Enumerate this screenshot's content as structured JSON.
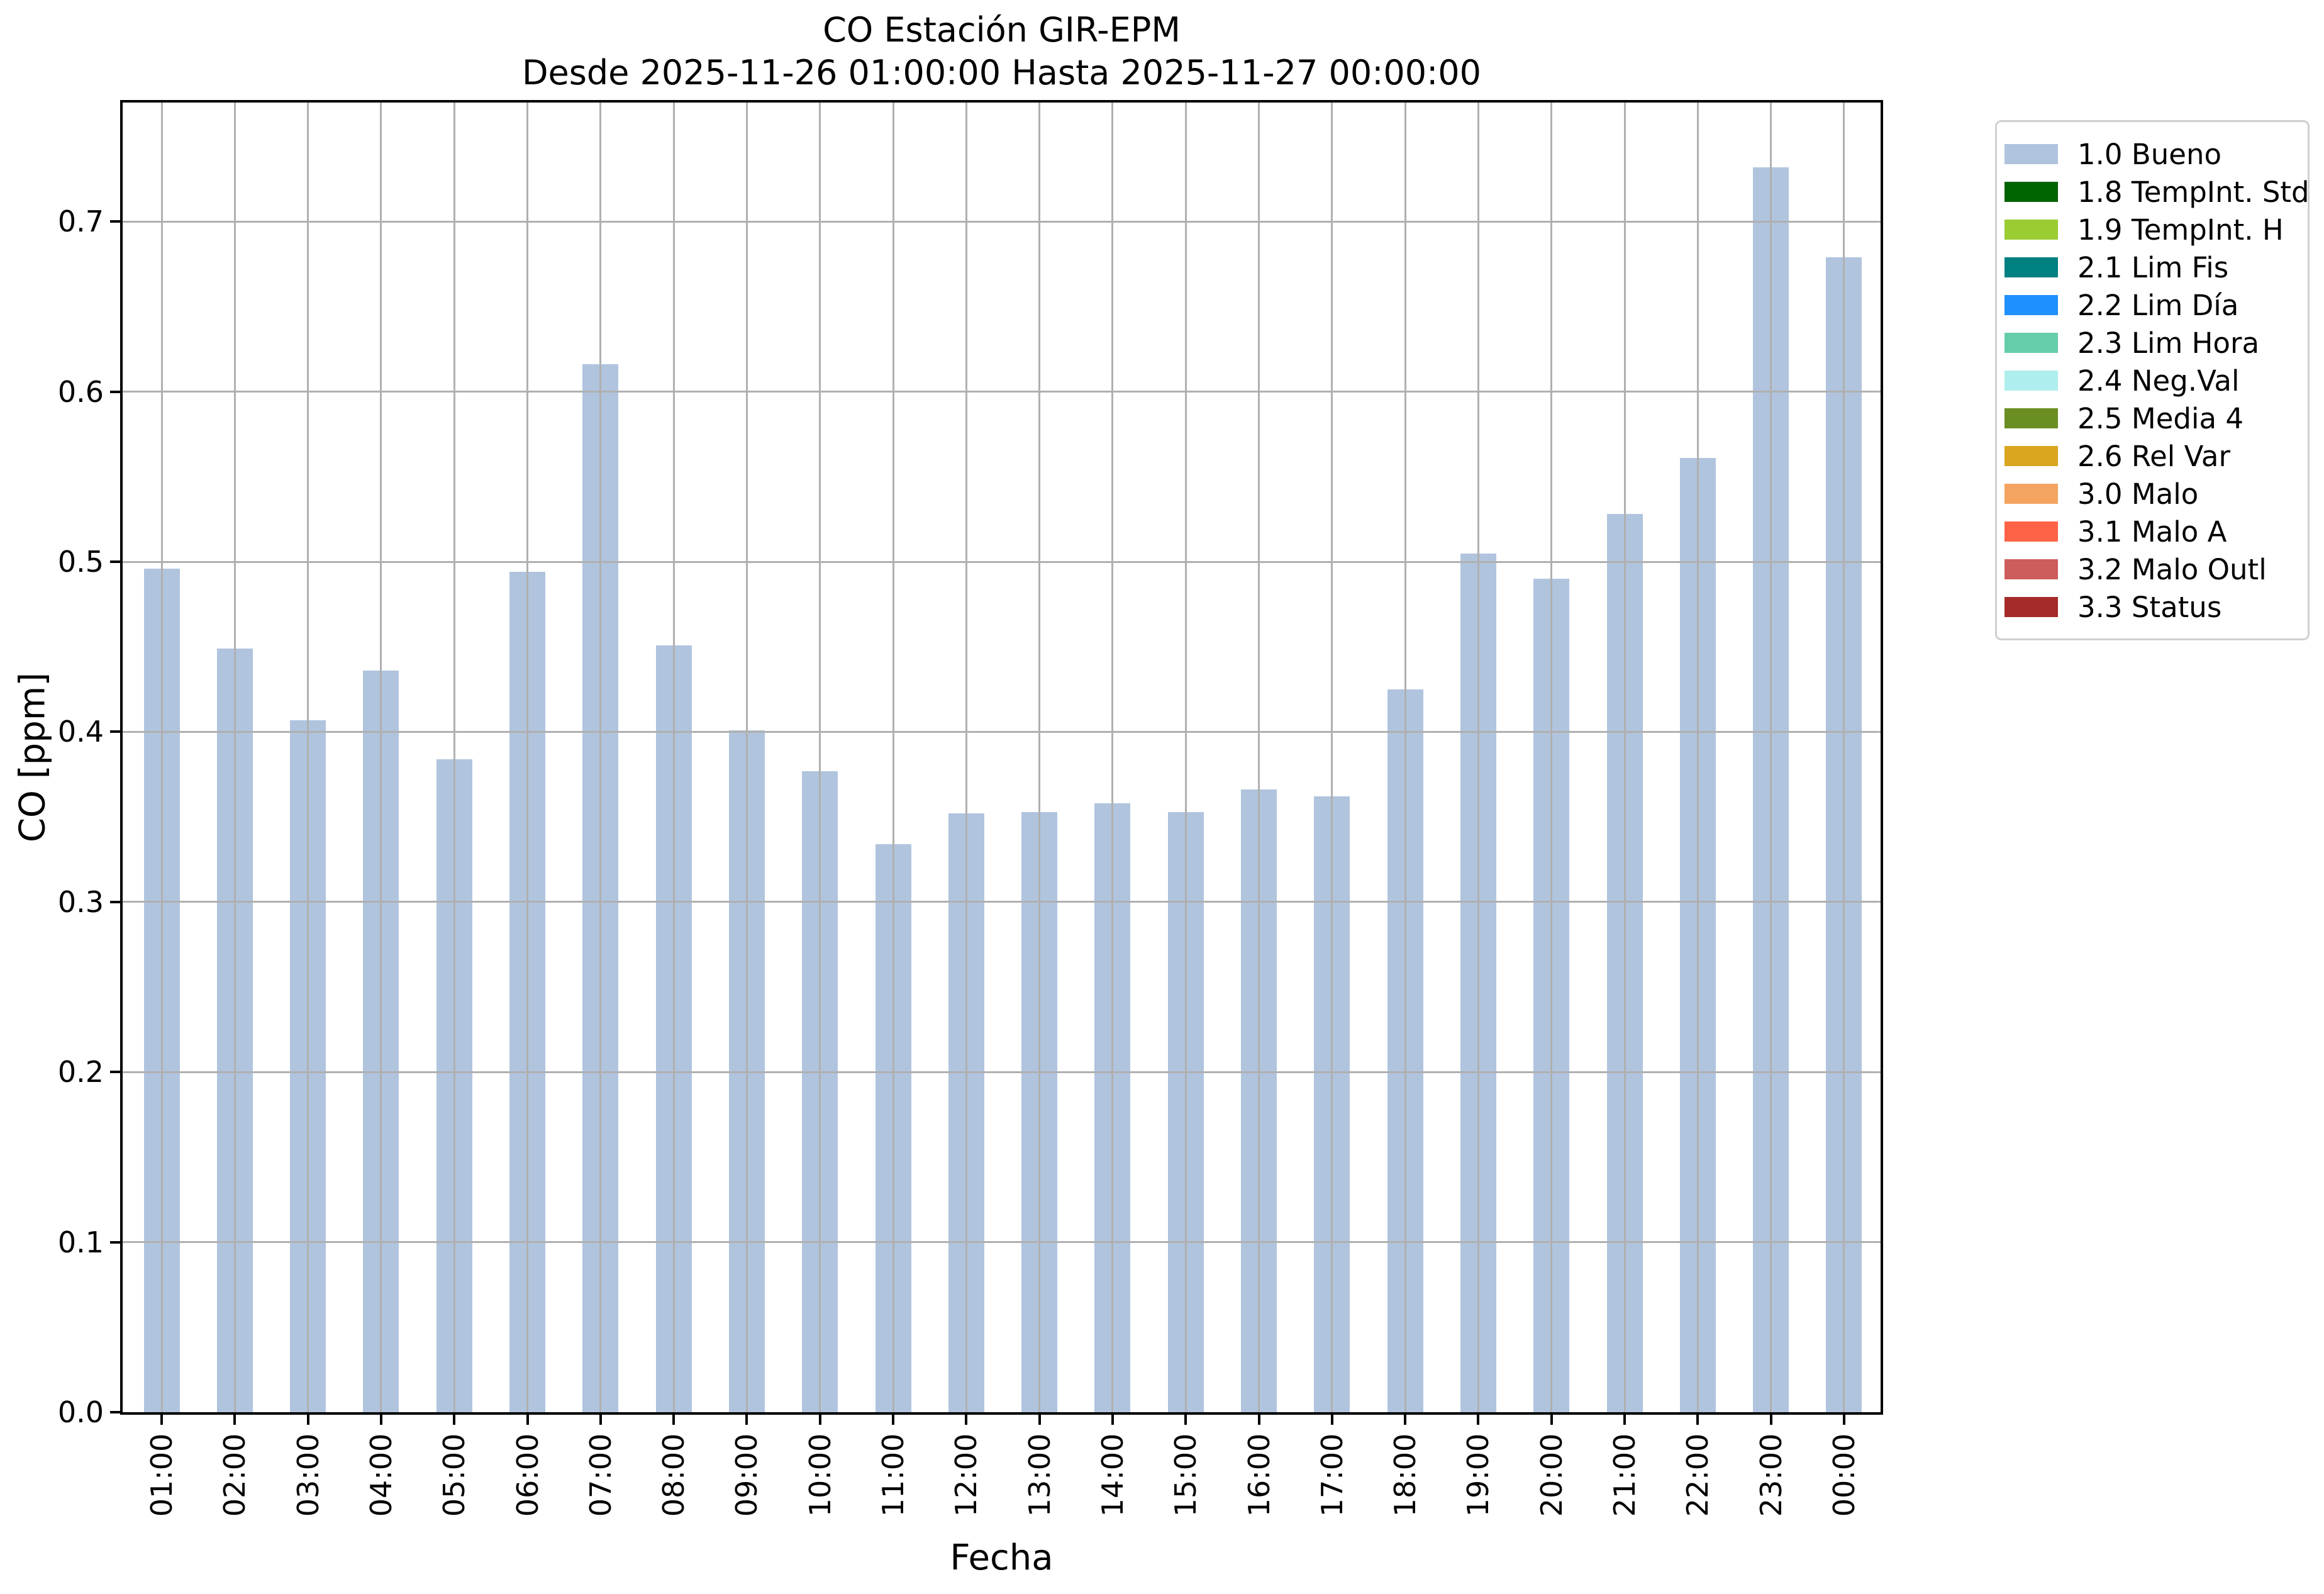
{
  "chart_data": {
    "type": "bar",
    "title": "CO Estación GIR-EPM",
    "subtitle": "Desde 2025-11-26 01:00:00 Hasta 2025-11-27 00:00:00",
    "xlabel": "Fecha",
    "ylabel": "CO [ppm]",
    "ylim": [
      0,
      0.77
    ],
    "yticks": [
      0.0,
      0.1,
      0.2,
      0.3,
      0.4,
      0.5,
      0.6,
      0.7
    ],
    "grid": true,
    "bar_color": "#b0c4de",
    "grid_color": "#b0b0b0",
    "categories": [
      "01:00",
      "02:00",
      "03:00",
      "04:00",
      "05:00",
      "06:00",
      "07:00",
      "08:00",
      "09:00",
      "10:00",
      "11:00",
      "12:00",
      "13:00",
      "14:00",
      "15:00",
      "16:00",
      "17:00",
      "18:00",
      "19:00",
      "20:00",
      "21:00",
      "22:00",
      "23:00",
      "00:00"
    ],
    "values": [
      0.496,
      0.449,
      0.407,
      0.436,
      0.384,
      0.494,
      0.616,
      0.451,
      0.401,
      0.377,
      0.334,
      0.352,
      0.353,
      0.358,
      0.353,
      0.366,
      0.362,
      0.425,
      0.505,
      0.49,
      0.528,
      0.561,
      0.732,
      0.679
    ],
    "legend": {
      "position": "upper right outside",
      "entries": [
        {
          "label": "1.0 Bueno",
          "color": "#b0c4de"
        },
        {
          "label": "1.8 TempInt. Std",
          "color": "#006400"
        },
        {
          "label": "1.9 TempInt. H",
          "color": "#9acd32"
        },
        {
          "label": "2.1 Lim Fis",
          "color": "#008080"
        },
        {
          "label": "2.2 Lim Día",
          "color": "#1e90ff"
        },
        {
          "label": "2.3 Lim Hora",
          "color": "#66cdaa"
        },
        {
          "label": "2.4 Neg.Val",
          "color": "#afeeee"
        },
        {
          "label": "2.5 Media 4",
          "color": "#6b8e23"
        },
        {
          "label": "2.6 Rel Var",
          "color": "#daa520"
        },
        {
          "label": "3.0 Malo",
          "color": "#f4a460"
        },
        {
          "label": "3.1 Malo A",
          "color": "#ff6347"
        },
        {
          "label": "3.2 Malo Outl",
          "color": "#cd5c5c"
        },
        {
          "label": "3.3 Status",
          "color": "#a52a2a"
        }
      ]
    }
  }
}
